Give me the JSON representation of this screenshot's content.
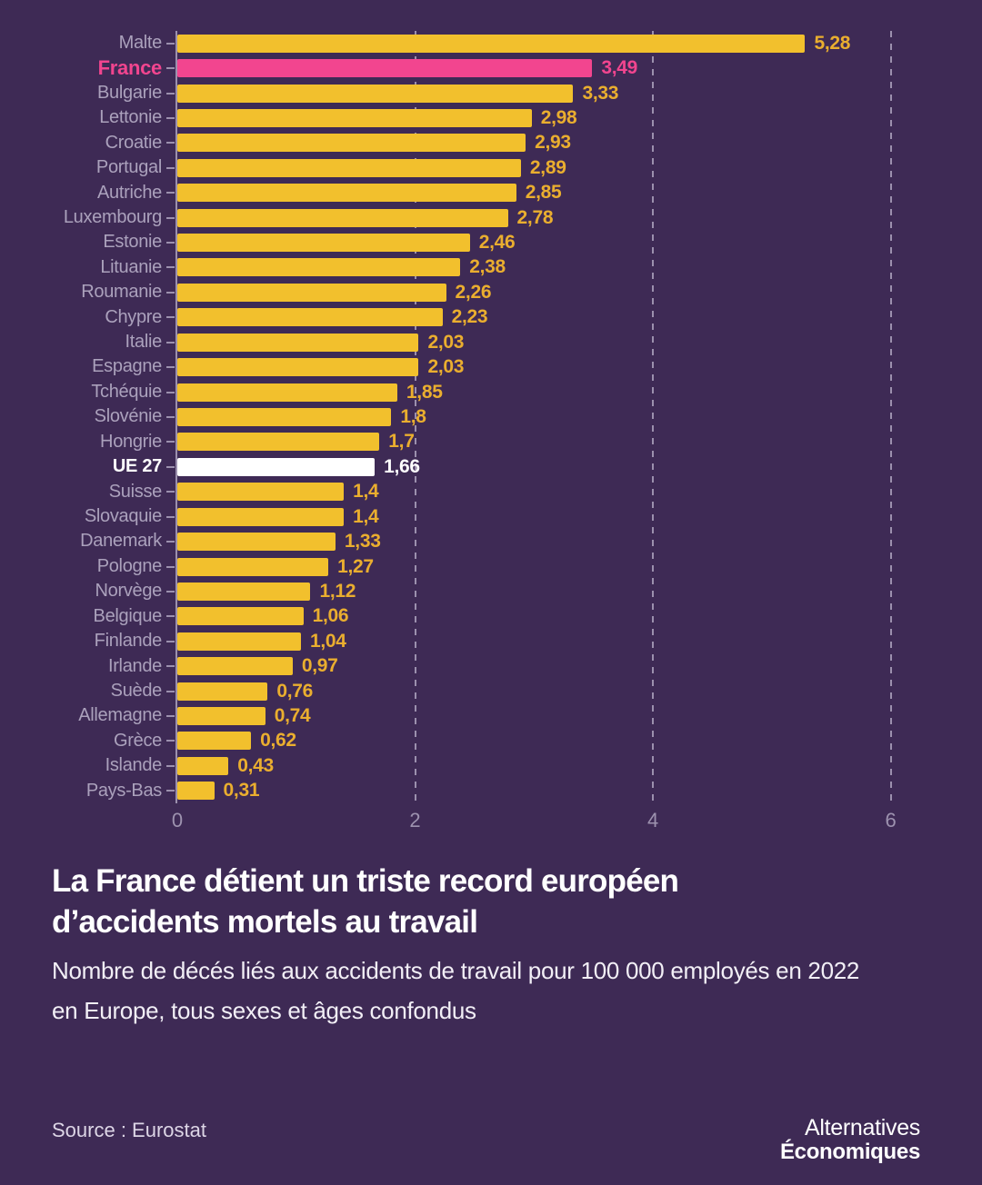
{
  "chart_data": {
    "type": "bar",
    "orientation": "horizontal",
    "title_line1": "La France détient un triste record européen",
    "title_line2": "d’accidents mortels au travail",
    "subtitle_line1": "Nombre de décés liés aux accidents de travail pour 100 000 employés en 2022",
    "subtitle_line2": "en Europe, tous sexes et âges confondus",
    "source": "Source : Eurostat",
    "xlim": [
      0,
      6.2
    ],
    "xticks": [
      0,
      2,
      4,
      6
    ],
    "xtick_labels": [
      "0",
      "2",
      "4",
      "6"
    ],
    "grid": "dashed-vertical",
    "legend": "none",
    "items": [
      {
        "label": "Malte",
        "value": 5.28,
        "display": "5,28",
        "variant": "default"
      },
      {
        "label": "France",
        "value": 3.49,
        "display": "3,49",
        "variant": "highlight"
      },
      {
        "label": "Bulgarie",
        "value": 3.33,
        "display": "3,33",
        "variant": "default"
      },
      {
        "label": "Lettonie",
        "value": 2.98,
        "display": "2,98",
        "variant": "default"
      },
      {
        "label": "Croatie",
        "value": 2.93,
        "display": "2,93",
        "variant": "default"
      },
      {
        "label": "Portugal",
        "value": 2.89,
        "display": "2,89",
        "variant": "default"
      },
      {
        "label": "Autriche",
        "value": 2.85,
        "display": "2,85",
        "variant": "default"
      },
      {
        "label": "Luxembourg",
        "value": 2.78,
        "display": "2,78",
        "variant": "default"
      },
      {
        "label": "Estonie",
        "value": 2.46,
        "display": "2,46",
        "variant": "default"
      },
      {
        "label": "Lituanie",
        "value": 2.38,
        "display": "2,38",
        "variant": "default"
      },
      {
        "label": "Roumanie",
        "value": 2.26,
        "display": "2,26",
        "variant": "default"
      },
      {
        "label": "Chypre",
        "value": 2.23,
        "display": "2,23",
        "variant": "default"
      },
      {
        "label": "Italie",
        "value": 2.03,
        "display": "2,03",
        "variant": "default"
      },
      {
        "label": "Espagne",
        "value": 2.03,
        "display": "2,03",
        "variant": "default"
      },
      {
        "label": "Tchéquie",
        "value": 1.85,
        "display": "1,85",
        "variant": "default"
      },
      {
        "label": "Slovénie",
        "value": 1.8,
        "display": "1,8",
        "variant": "default"
      },
      {
        "label": "Hongrie",
        "value": 1.7,
        "display": "1,7",
        "variant": "default"
      },
      {
        "label": "UE 27",
        "value": 1.66,
        "display": "1,66",
        "variant": "eu"
      },
      {
        "label": "Suisse",
        "value": 1.4,
        "display": "1,4",
        "variant": "default"
      },
      {
        "label": "Slovaquie",
        "value": 1.4,
        "display": "1,4",
        "variant": "default"
      },
      {
        "label": "Danemark",
        "value": 1.33,
        "display": "1,33",
        "variant": "default"
      },
      {
        "label": "Pologne",
        "value": 1.27,
        "display": "1,27",
        "variant": "default"
      },
      {
        "label": "Norvège",
        "value": 1.12,
        "display": "1,12",
        "variant": "default"
      },
      {
        "label": "Belgique",
        "value": 1.06,
        "display": "1,06",
        "variant": "default"
      },
      {
        "label": "Finlande",
        "value": 1.04,
        "display": "1,04",
        "variant": "default"
      },
      {
        "label": "Irlande",
        "value": 0.97,
        "display": "0,97",
        "variant": "default"
      },
      {
        "label": "Suède",
        "value": 0.76,
        "display": "0,76",
        "variant": "default"
      },
      {
        "label": "Allemagne",
        "value": 0.74,
        "display": "0,74",
        "variant": "default"
      },
      {
        "label": "Grèce",
        "value": 0.62,
        "display": "0,62",
        "variant": "default"
      },
      {
        "label": "Islande",
        "value": 0.43,
        "display": "0,43",
        "variant": "default"
      },
      {
        "label": "Pays-Bas",
        "value": 0.31,
        "display": "0,31",
        "variant": "default"
      }
    ]
  },
  "colors": {
    "background": "#3e2a55",
    "bar": "#f2c02d",
    "bar_highlight": "#f2458f",
    "bar_eu": "#ffffff",
    "value": "#eaae2f",
    "value_highlight": "#f2458f",
    "value_eu": "#ffffff",
    "category": "#aba1bc",
    "grid": "#9c90ae",
    "title": "#ffffff"
  },
  "footer": {
    "source": "Source : Eurostat",
    "logo_line1": "Alternatives",
    "logo_line2": "Économiques"
  }
}
